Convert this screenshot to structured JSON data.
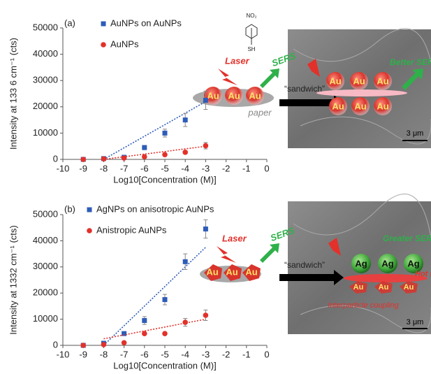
{
  "chart_data": [
    {
      "type": "scatter",
      "panel": "(a)",
      "ylabel": "Intensity at 133 6 cm⁻¹ (cts)",
      "xlabel": "Log10[Concentration (M)]",
      "xlim": [
        -10,
        0
      ],
      "xticks": [
        -10,
        -9,
        -8,
        -7,
        -6,
        -5,
        -4,
        -3,
        -2,
        -1,
        0
      ],
      "ylim": [
        0,
        50000
      ],
      "yticks": [
        0,
        10000,
        20000,
        30000,
        40000,
        50000
      ],
      "legend": "upper left",
      "series": [
        {
          "name": "AuNPs on AuNPs",
          "color": "#2e5cb8",
          "marker": "square",
          "x": [
            -9,
            -8,
            -7,
            -6,
            -5,
            -4,
            -3
          ],
          "values": [
            0,
            300,
            800,
            4500,
            10000,
            15000,
            22500
          ],
          "errors": [
            null,
            null,
            null,
            800,
            1500,
            2500,
            3500
          ],
          "trend": {
            "x": [
              -8,
              -3
            ],
            "y": [
              0,
              22000
            ]
          }
        },
        {
          "name": "AuNPs",
          "color": "#e2312b",
          "marker": "circle",
          "x": [
            -9,
            -8,
            -7,
            -6,
            -5,
            -4,
            -3
          ],
          "values": [
            0,
            200,
            500,
            1000,
            1800,
            2700,
            5200
          ],
          "errors": [
            null,
            null,
            null,
            null,
            null,
            500,
            1200
          ],
          "trend": {
            "x": [
              -8,
              -3
            ],
            "y": [
              0,
              5000
            ]
          }
        }
      ]
    },
    {
      "type": "scatter",
      "panel": "(b)",
      "ylabel": "Intensity at 1332 cm⁻¹ (cts)",
      "xlabel": "Log10[Concentration (M)]",
      "xlim": [
        -10,
        0
      ],
      "xticks": [
        -10,
        -9,
        -8,
        -7,
        -6,
        -5,
        -4,
        -3,
        -2,
        -1,
        0
      ],
      "ylim": [
        0,
        50000
      ],
      "yticks": [
        0,
        10000,
        20000,
        30000,
        40000,
        50000
      ],
      "legend": "upper left",
      "series": [
        {
          "name": "AgNPs on anisotropic AuNPs",
          "color": "#2e5cb8",
          "marker": "square",
          "x": [
            -9,
            -8,
            -7,
            -6,
            -5,
            -4,
            -3
          ],
          "values": [
            0,
            800,
            4500,
            9500,
            17500,
            32000,
            44500
          ],
          "errors": [
            null,
            null,
            null,
            1500,
            2000,
            3000,
            3500
          ],
          "trend": {
            "x": [
              -8,
              -3
            ],
            "y": [
              0,
              37500
            ]
          }
        },
        {
          "name": "Anistropic AuNPs",
          "color": "#e2312b",
          "marker": "circle",
          "x": [
            -9,
            -8,
            -7,
            -6,
            -5,
            -4,
            -3
          ],
          "values": [
            0,
            300,
            1000,
            4500,
            4500,
            8800,
            11500
          ],
          "errors": [
            null,
            null,
            null,
            null,
            null,
            1500,
            2000
          ],
          "trend": {
            "x": [
              -8,
              -3
            ],
            "y": [
              2500,
              10000
            ]
          }
        }
      ]
    }
  ],
  "schematics": [
    {
      "laser": "Laser",
      "sers": "SERS",
      "particles": [
        "Au",
        "Au",
        "Au"
      ],
      "substrate": "paper",
      "sandwich": "“sandwich”",
      "molecule_top": "NO₂",
      "molecule_bottom": "SH",
      "top_row": [
        "Au",
        "Au",
        "Au"
      ],
      "bottom_row": [
        "Au",
        "Au",
        "Au"
      ],
      "enhanced": "Better SERS",
      "scale": "3 μm"
    },
    {
      "laser": "Laser",
      "sers": "SERS",
      "particles": [
        "Au",
        "Au",
        "Au"
      ],
      "sandwich": "“sandwich”",
      "top_row": [
        "Ag",
        "Ag",
        "Ag"
      ],
      "bottom_row": [
        "Au",
        "Au",
        "Au"
      ],
      "enhanced": "Greater SERS",
      "hotspot": "Hot spots",
      "coupling": "Interparticle coupling",
      "scale": "3 μm"
    }
  ]
}
